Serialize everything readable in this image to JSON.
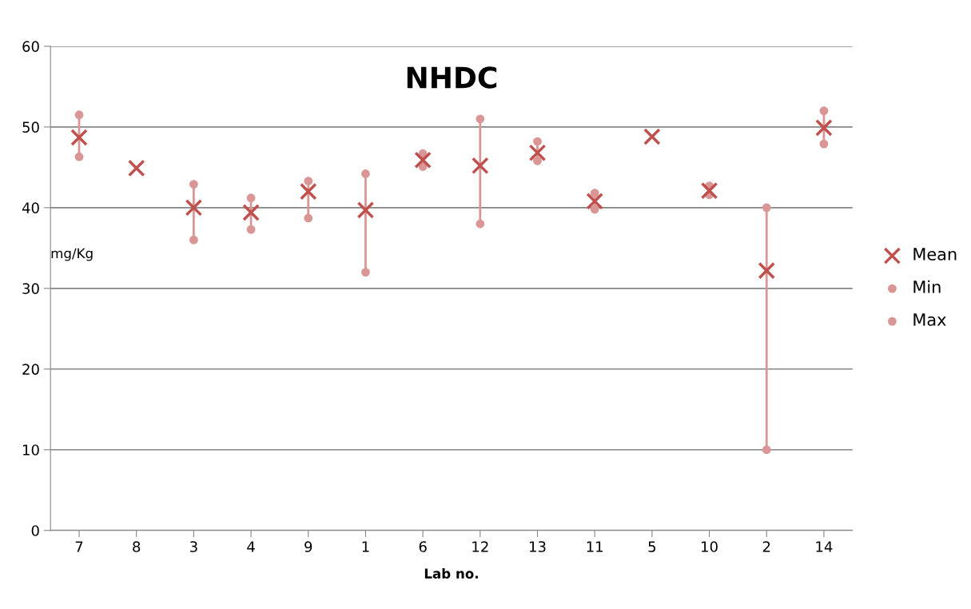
{
  "chart_data": {
    "type": "scatter",
    "title": "NHDC",
    "xlabel": "Lab no.",
    "ylabel": "mg/Kg",
    "categories": [
      "7",
      "8",
      "3",
      "4",
      "9",
      "1",
      "6",
      "12",
      "13",
      "11",
      "5",
      "10",
      "2",
      "14"
    ],
    "series": [
      {
        "name": "Mean",
        "color": "#c0504d",
        "marker": "cross",
        "values": [
          48.7,
          44.9,
          40.0,
          39.4,
          42.0,
          39.7,
          45.9,
          45.2,
          46.8,
          40.8,
          48.8,
          42.1,
          32.2,
          49.9
        ]
      },
      {
        "name": "Min",
        "color": "#d99694",
        "marker": "circle",
        "values": [
          46.3,
          null,
          36.0,
          37.3,
          38.7,
          32.0,
          45.1,
          38.0,
          45.8,
          39.8,
          null,
          41.6,
          10.0,
          47.9
        ]
      },
      {
        "name": "Max",
        "color": "#d99694",
        "marker": "circle",
        "values": [
          51.5,
          null,
          42.9,
          41.2,
          43.3,
          44.2,
          46.7,
          51.0,
          48.2,
          41.8,
          null,
          42.7,
          40.0,
          52.0
        ]
      }
    ],
    "ylim": [
      0,
      60
    ],
    "yticks": [
      0,
      10,
      20,
      30,
      40,
      50,
      60
    ],
    "grid": "y",
    "legend": "right"
  }
}
